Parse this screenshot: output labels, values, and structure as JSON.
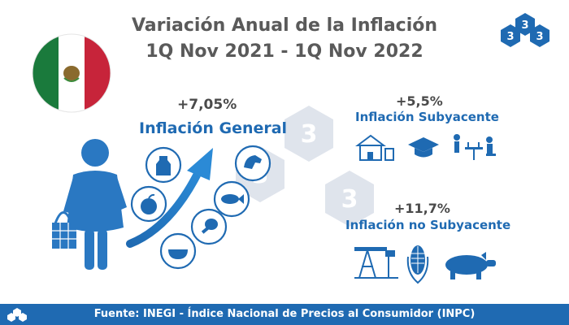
{
  "header": {
    "title_line1": "Variación Anual de la Inflación",
    "title_line2": "1Q Nov 2021 - 1Q Nov 2022"
  },
  "brand": {
    "logo_text": "3",
    "color": "#1f6ab2"
  },
  "general": {
    "percent": "+7,05%",
    "label": "Inflación General"
  },
  "subyacente": {
    "percent": "+5,5%",
    "label": "Inflación Subyacente"
  },
  "no_subyacente": {
    "percent": "+11,7%",
    "label": "Inflación no Subyacente"
  },
  "footer": {
    "source": "Fuente: INEGI - Índice Nacional de Precios al Consumidor (INPC)"
  },
  "colors": {
    "accent": "#1f6ab2",
    "title": "#5a5a5a",
    "flag_green": "#1a7a3c",
    "flag_red": "#c7243a",
    "watermark": "#d7dde6"
  },
  "icons": [
    "mexico-flag-icon",
    "woman-shopping-icon",
    "milk-icon",
    "horse-icon",
    "apple-icon",
    "fish-icon",
    "chicken-leg-icon",
    "bowl-icon",
    "house-icon",
    "graduation-cap-icon",
    "dining-people-icon",
    "oil-pump-icon",
    "corn-icon",
    "pig-icon"
  ]
}
